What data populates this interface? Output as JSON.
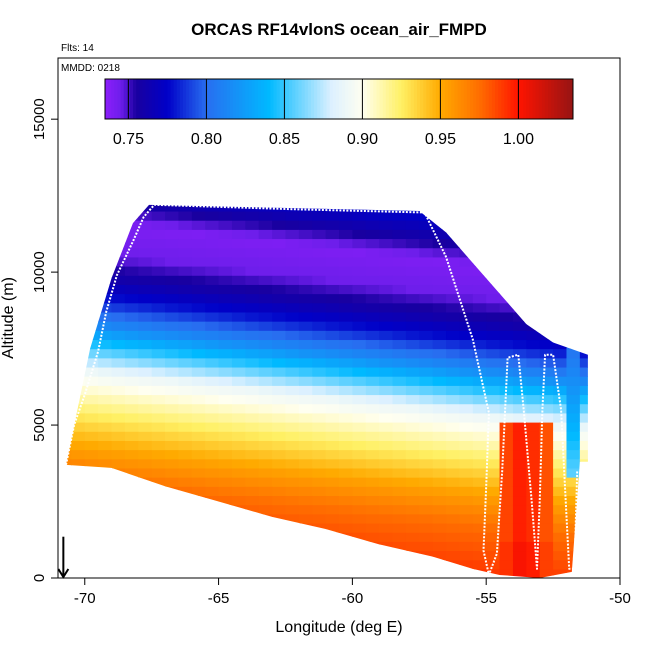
{
  "chart_data": {
    "type": "heatmap",
    "title": "ORCAS RF14vlonS ocean_air_FMPD",
    "flights_note": "Flts: 14",
    "date_note": "MMDD: 0218",
    "xlabel": "Longitude (deg E)",
    "ylabel": "Altitude (m)",
    "xlim": [
      -71,
      -50
    ],
    "ylim": [
      0,
      17000
    ],
    "x_ticks": [
      -70,
      -65,
      -60,
      -55,
      -50
    ],
    "y_ticks": [
      0,
      5000,
      10000,
      15000
    ],
    "colorbar": {
      "range": [
        0.735,
        1.035
      ],
      "ticks": [
        0.75,
        0.8,
        0.85,
        0.9,
        0.95,
        1.0
      ],
      "tick_labels": [
        "0.75",
        "0.80",
        "0.85",
        "0.90",
        "0.95",
        "1.00"
      ],
      "placement": "top-inside"
    },
    "fill_profile_by_altitude": [
      {
        "alt": 0,
        "value": 0.995
      },
      {
        "alt": 1000,
        "value": 0.985
      },
      {
        "alt": 2000,
        "value": 0.975
      },
      {
        "alt": 3000,
        "value": 0.955
      },
      {
        "alt": 4000,
        "value": 0.93
      },
      {
        "alt": 5000,
        "value": 0.905
      },
      {
        "alt": 5600,
        "value": 0.89
      },
      {
        "alt": 6200,
        "value": 0.86
      },
      {
        "alt": 7000,
        "value": 0.82
      },
      {
        "alt": 8000,
        "value": 0.78
      },
      {
        "alt": 8700,
        "value": 0.76
      },
      {
        "alt": 9500,
        "value": 0.745
      },
      {
        "alt": 10500,
        "value": 0.74
      },
      {
        "alt": 11500,
        "value": 0.765
      },
      {
        "alt": 12200,
        "value": 0.78
      }
    ],
    "slope_per_deg_lon": 100,
    "top_boundary": [
      [
        -69.8,
        7500
      ],
      [
        -69.0,
        9800
      ],
      [
        -68.2,
        11600
      ],
      [
        -67.6,
        12200
      ],
      [
        -57.5,
        12000
      ],
      [
        -56.5,
        11300
      ],
      [
        -55.5,
        10300
      ],
      [
        -54.5,
        9300
      ],
      [
        -53.5,
        8300
      ],
      [
        -52.5,
        7700
      ],
      [
        -51.2,
        7300
      ],
      [
        -51.2,
        3800
      ],
      [
        -51.5,
        3800
      ]
    ],
    "bottom_boundary": [
      [
        -70.7,
        3700
      ],
      [
        -69.0,
        3600
      ],
      [
        -67.0,
        3000
      ],
      [
        -65.0,
        2500
      ],
      [
        -63.0,
        2000
      ],
      [
        -61.0,
        1600
      ],
      [
        -59.0,
        1100
      ],
      [
        -57.0,
        700
      ],
      [
        -55.5,
        300
      ],
      [
        -54.5,
        100
      ],
      [
        -53.0,
        0
      ],
      [
        -51.8,
        200
      ],
      [
        -51.5,
        3800
      ]
    ],
    "flight_track": [
      [
        -70.7,
        3700
      ],
      [
        -70.4,
        5000
      ],
      [
        -70.0,
        6000
      ],
      [
        -69.5,
        7400
      ],
      [
        -69.2,
        8700
      ],
      [
        -68.8,
        9900
      ],
      [
        -68.2,
        11000
      ],
      [
        -67.8,
        11800
      ],
      [
        -67.4,
        12200
      ],
      [
        -62.0,
        12050
      ],
      [
        -57.3,
        11950
      ],
      [
        -56.5,
        10500
      ],
      [
        -55.5,
        7800
      ],
      [
        -54.9,
        5400
      ],
      [
        -55.0,
        3000
      ],
      [
        -55.1,
        900
      ],
      [
        -54.9,
        100
      ],
      [
        -54.6,
        800
      ],
      [
        -54.4,
        3500
      ],
      [
        -54.2,
        7200
      ],
      [
        -53.8,
        7300
      ],
      [
        -53.6,
        5500
      ],
      [
        -53.3,
        2500
      ],
      [
        -53.1,
        300
      ],
      [
        -53.0,
        2500
      ],
      [
        -52.9,
        5500
      ],
      [
        -52.8,
        7300
      ],
      [
        -52.5,
        7300
      ],
      [
        -52.2,
        5500
      ],
      [
        -52.0,
        2000
      ],
      [
        -51.9,
        300
      ],
      [
        -51.7,
        300
      ],
      [
        -51.6,
        3500
      ]
    ],
    "hot_column_lon": -53.6,
    "hot_column_top": 5000,
    "arrow_lon": -70.8
  }
}
